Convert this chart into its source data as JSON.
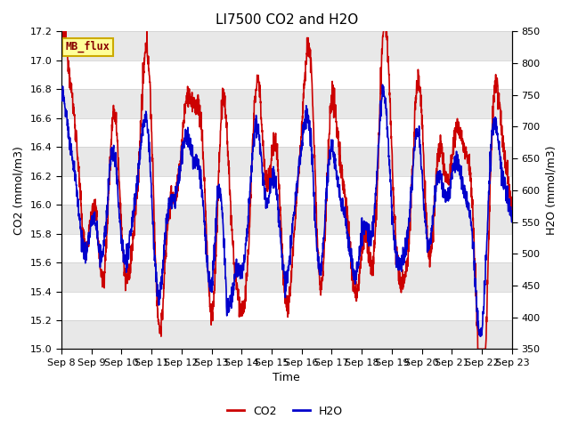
{
  "title": "LI7500 CO2 and H2O",
  "xlabel": "Time",
  "ylabel_left": "CO2 (mmol/m3)",
  "ylabel_right": "H2O (mmol/m3)",
  "ylim_left": [
    15.0,
    17.2
  ],
  "ylim_right": [
    350,
    850
  ],
  "yticks_left": [
    15.0,
    15.2,
    15.4,
    15.6,
    15.8,
    16.0,
    16.2,
    16.4,
    16.6,
    16.8,
    17.0,
    17.2
  ],
  "yticks_right": [
    350,
    400,
    450,
    500,
    550,
    600,
    650,
    700,
    750,
    800,
    850
  ],
  "xtick_labels": [
    "Sep 8",
    "Sep 9",
    "Sep 10",
    "Sep 11",
    "Sep 12",
    "Sep 13",
    "Sep 14",
    "Sep 15",
    "Sep 16",
    "Sep 17",
    "Sep 18",
    "Sep 19",
    "Sep 20",
    "Sep 21",
    "Sep 22",
    "Sep 23"
  ],
  "watermark_text": "MB_flux",
  "watermark_bg": "#FFFF99",
  "watermark_border": "#CCAA00",
  "co2_color": "#CC0000",
  "h2o_color": "#0000CC",
  "background_color": "#FFFFFF",
  "plot_bg": "#FFFFFF",
  "band_color": "#E8E8E8",
  "grid_color": "#DDDDDD",
  "title_fontsize": 11,
  "axis_label_fontsize": 9,
  "tick_fontsize": 8,
  "legend_fontsize": 9,
  "line_width": 1.2
}
